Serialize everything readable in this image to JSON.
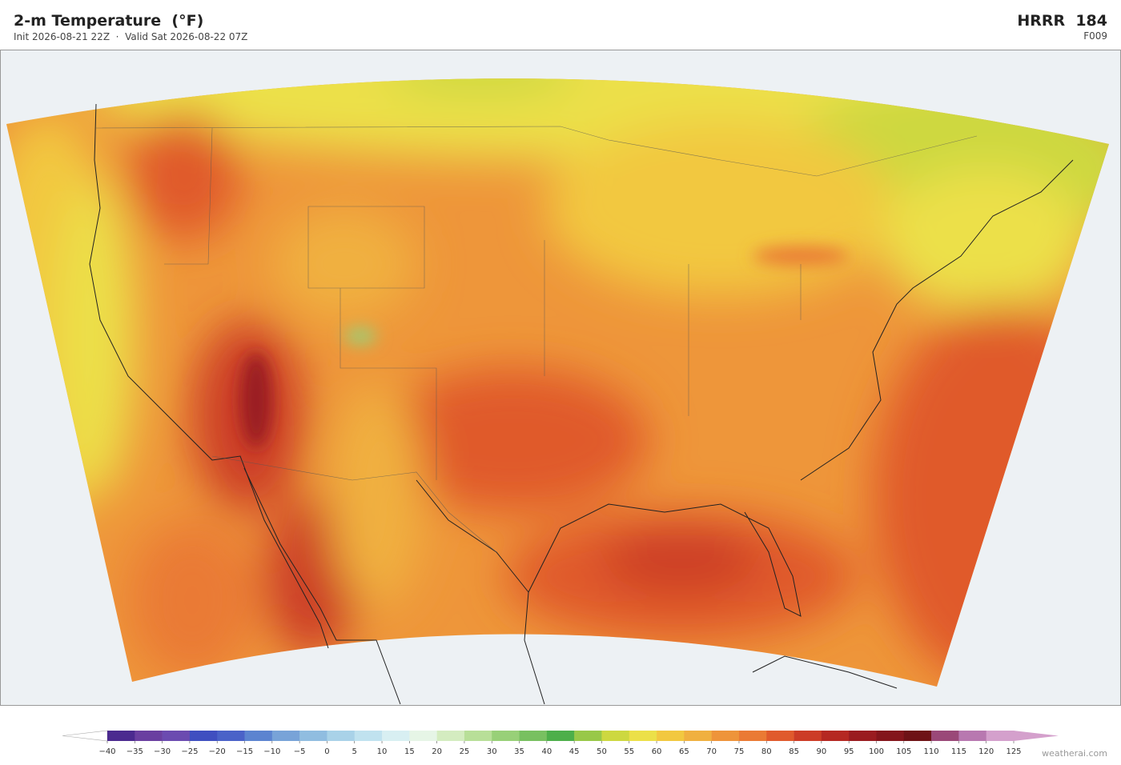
{
  "header": {
    "title": "2-m Temperature  (°F)",
    "subtitle": "Init 2026-08-21 22Z  ·  Valid Sat 2026-08-22 07Z",
    "model": "HRRR  184",
    "forecast_hour": "F009"
  },
  "colorbar": {
    "ticks": [
      {
        "value": -40,
        "label": "−40"
      },
      {
        "value": -35,
        "label": "−35"
      },
      {
        "value": -30,
        "label": "−30"
      },
      {
        "value": -25,
        "label": "−25"
      },
      {
        "value": -20,
        "label": "−20"
      },
      {
        "value": -15,
        "label": "−15"
      },
      {
        "value": -10,
        "label": "−10"
      },
      {
        "value": -5,
        "label": "−5"
      },
      0,
      5,
      10,
      15,
      20,
      25,
      30,
      35,
      40,
      45,
      50,
      55,
      60,
      65,
      70,
      75,
      80,
      85,
      90,
      95,
      100,
      105,
      110,
      115,
      120,
      125
    ],
    "colors": [
      "#4b2a8f",
      "#6a3fa0",
      "#6b4bb0",
      "#3f4fc0",
      "#4a62c8",
      "#5c84d0",
      "#78a3d8",
      "#90bde0",
      "#a9d2e8",
      "#c0e2ef",
      "#d8eff2",
      "#e6f5e6",
      "#d4ecc0",
      "#b8df98",
      "#98d078",
      "#78c060",
      "#4daf4a",
      "#98c848",
      "#cdd840",
      "#ece048",
      "#f2c840",
      "#f0b040",
      "#ee943a",
      "#ea7a34",
      "#e05a2c",
      "#cc3c26",
      "#b52822",
      "#9a1c20",
      "#84161c",
      "#6e1216",
      "#9a4878",
      "#b878b0",
      "#d4a0cc"
    ],
    "under_color": "#ffffff",
    "over_color": "#d4a0cc"
  },
  "footer": {
    "credit": "weatherai.com"
  }
}
